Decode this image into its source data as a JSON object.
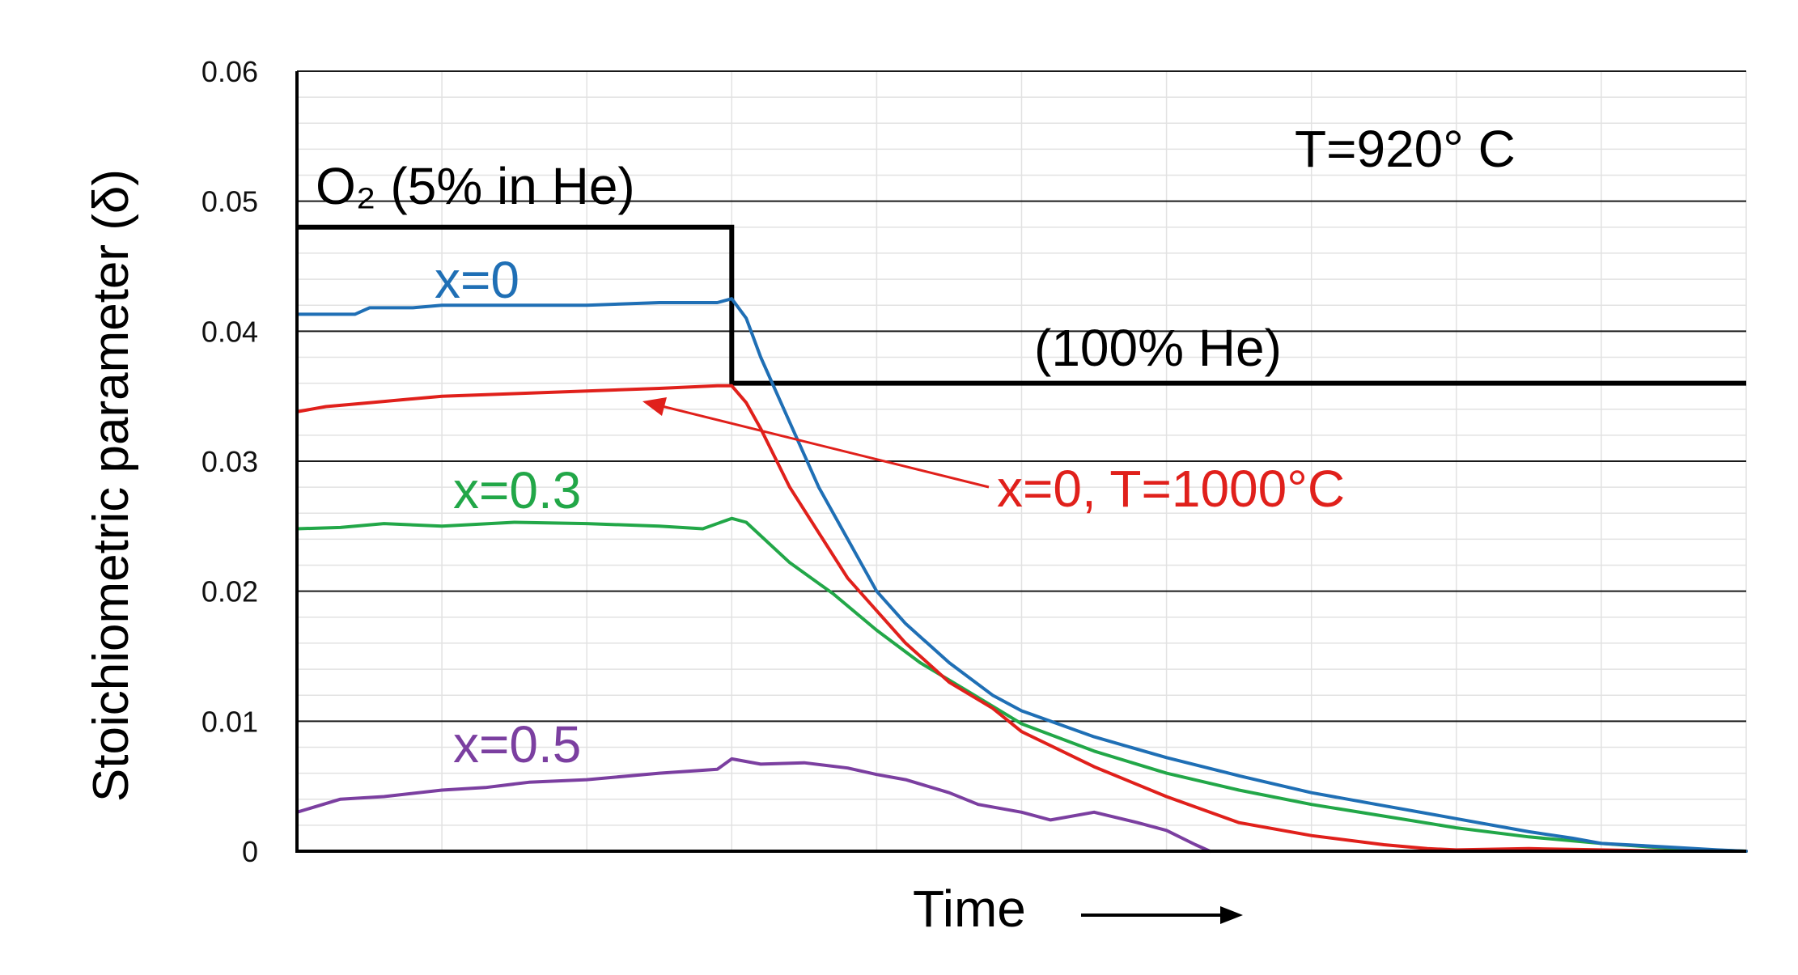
{
  "chart_data": {
    "type": "line",
    "ylabel": "Stoichiometric parameter (δ)",
    "xlabel": "Time",
    "ylim": [
      0,
      0.06
    ],
    "xlim": [
      0,
      1
    ],
    "yticks": [
      "0",
      "0.01",
      "0.02",
      "0.03",
      "0.04",
      "0.05",
      "0.06"
    ],
    "annotations": {
      "temperature": "T=920° C",
      "o2_gas": "O₂ (5% in He)",
      "he_gas": "(100% He)",
      "x0_label": "x=0",
      "x03_label": "x=0.3",
      "x05_label": "x=0.5",
      "x0_t1000_label": "x=0, T=1000°C"
    },
    "gas_switch_step": {
      "name": "gas switch",
      "x": [
        0,
        0.3,
        0.3,
        1.0
      ],
      "y": [
        0.048,
        0.048,
        0.036,
        0.036
      ]
    },
    "series": [
      {
        "name": "x=0",
        "color": "#1f6fb5",
        "x": [
          0,
          0.02,
          0.04,
          0.05,
          0.08,
          0.1,
          0.15,
          0.2,
          0.25,
          0.29,
          0.3,
          0.31,
          0.32,
          0.34,
          0.36,
          0.38,
          0.4,
          0.42,
          0.45,
          0.48,
          0.5,
          0.55,
          0.6,
          0.65,
          0.7,
          0.75,
          0.8,
          0.85,
          0.88,
          0.9,
          0.95,
          0.98,
          1.0
        ],
        "y": [
          0.0413,
          0.0413,
          0.0413,
          0.0418,
          0.0418,
          0.042,
          0.042,
          0.042,
          0.0422,
          0.0422,
          0.0425,
          0.041,
          0.038,
          0.033,
          0.028,
          0.024,
          0.02,
          0.0175,
          0.0145,
          0.012,
          0.0108,
          0.0088,
          0.0072,
          0.0058,
          0.0045,
          0.0035,
          0.0025,
          0.0015,
          0.001,
          0.0006,
          0.0003,
          0.0001,
          0.0
        ]
      },
      {
        "name": "x=0, T=1000°C",
        "color": "#e0201b",
        "x": [
          0,
          0.02,
          0.05,
          0.1,
          0.15,
          0.2,
          0.25,
          0.29,
          0.3,
          0.31,
          0.32,
          0.34,
          0.36,
          0.38,
          0.4,
          0.42,
          0.45,
          0.48,
          0.5,
          0.55,
          0.6,
          0.65,
          0.7,
          0.75,
          0.78,
          0.8,
          0.85,
          0.9,
          0.95,
          1.0
        ],
        "y": [
          0.0338,
          0.0342,
          0.0345,
          0.035,
          0.0352,
          0.0354,
          0.0356,
          0.0358,
          0.0358,
          0.0345,
          0.0325,
          0.028,
          0.0245,
          0.021,
          0.0185,
          0.016,
          0.013,
          0.011,
          0.0092,
          0.0065,
          0.0042,
          0.0022,
          0.0012,
          0.0005,
          0.0002,
          0.0001,
          0.0002,
          0.0001,
          0.0,
          0.0
        ]
      },
      {
        "name": "x=0.3",
        "color": "#22a748",
        "x": [
          0,
          0.03,
          0.06,
          0.1,
          0.15,
          0.2,
          0.25,
          0.28,
          0.3,
          0.31,
          0.34,
          0.37,
          0.4,
          0.43,
          0.46,
          0.5,
          0.55,
          0.6,
          0.65,
          0.7,
          0.75,
          0.8,
          0.85,
          0.9,
          0.95,
          1.0
        ],
        "y": [
          0.0248,
          0.0249,
          0.0252,
          0.025,
          0.0253,
          0.0252,
          0.025,
          0.0248,
          0.0256,
          0.0253,
          0.0222,
          0.0198,
          0.017,
          0.0145,
          0.0125,
          0.0098,
          0.0077,
          0.006,
          0.0047,
          0.0036,
          0.0027,
          0.0018,
          0.0011,
          0.0006,
          0.0002,
          0.0
        ]
      },
      {
        "name": "x=0.5",
        "color": "#7b3fa0",
        "x": [
          0,
          0.03,
          0.06,
          0.1,
          0.13,
          0.16,
          0.2,
          0.25,
          0.29,
          0.3,
          0.32,
          0.35,
          0.38,
          0.4,
          0.42,
          0.45,
          0.47,
          0.5,
          0.52,
          0.55,
          0.58,
          0.6,
          0.62,
          0.63
        ],
        "y": [
          0.003,
          0.004,
          0.0042,
          0.0047,
          0.0049,
          0.0053,
          0.0055,
          0.006,
          0.0063,
          0.0071,
          0.0067,
          0.0068,
          0.0064,
          0.0059,
          0.0055,
          0.0045,
          0.0036,
          0.003,
          0.0024,
          0.003,
          0.0022,
          0.0016,
          0.0005,
          0.0
        ]
      }
    ]
  }
}
